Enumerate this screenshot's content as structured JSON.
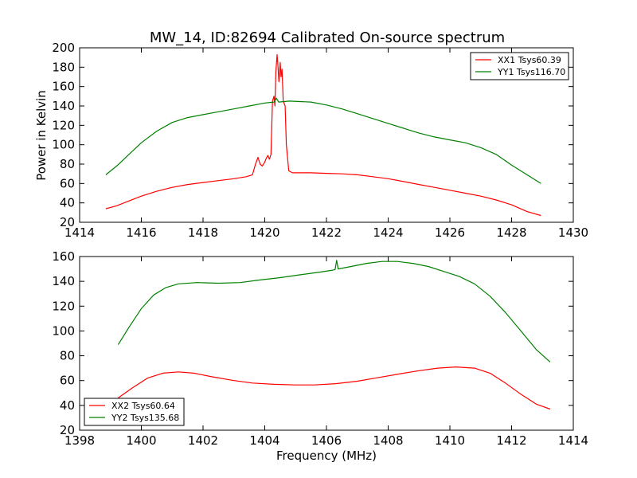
{
  "chart_data": [
    {
      "type": "line",
      "title": "MW_14, ID:82694 Calibrated On-source spectrum",
      "xlabel": "",
      "ylabel": "Power in Kelvin",
      "xlim": [
        1414,
        1430
      ],
      "ylim": [
        20,
        200
      ],
      "xticks": [
        1414,
        1416,
        1418,
        1420,
        1422,
        1424,
        1426,
        1428,
        1430
      ],
      "yticks": [
        20,
        40,
        60,
        80,
        100,
        120,
        140,
        160,
        180,
        200
      ],
      "legend_position": "top-right",
      "grid": false,
      "series": [
        {
          "name": "XX1 Tsys60.39",
          "color": "#ff0000",
          "points": [
            [
              1414.85,
              34
            ],
            [
              1415.2,
              37
            ],
            [
              1415.6,
              42
            ],
            [
              1416,
              47
            ],
            [
              1416.5,
              52
            ],
            [
              1417,
              56
            ],
            [
              1417.5,
              59
            ],
            [
              1418,
              61
            ],
            [
              1418.5,
              63
            ],
            [
              1419,
              65
            ],
            [
              1419.4,
              67
            ],
            [
              1419.6,
              69
            ],
            [
              1419.7,
              80
            ],
            [
              1419.78,
              87
            ],
            [
              1419.85,
              80
            ],
            [
              1419.92,
              78
            ],
            [
              1420.0,
              82
            ],
            [
              1420.05,
              86
            ],
            [
              1420.1,
              89
            ],
            [
              1420.15,
              85
            ],
            [
              1420.2,
              90
            ],
            [
              1420.25,
              145
            ],
            [
              1420.3,
              150
            ],
            [
              1420.33,
              140
            ],
            [
              1420.36,
              175
            ],
            [
              1420.4,
              193
            ],
            [
              1420.43,
              180
            ],
            [
              1420.46,
              165
            ],
            [
              1420.5,
              185
            ],
            [
              1420.53,
              170
            ],
            [
              1420.56,
              178
            ],
            [
              1420.6,
              145
            ],
            [
              1420.66,
              140
            ],
            [
              1420.7,
              100
            ],
            [
              1420.78,
              73
            ],
            [
              1420.9,
              71
            ],
            [
              1421.5,
              71
            ],
            [
              1422,
              70.5
            ],
            [
              1422.5,
              70
            ],
            [
              1423,
              69
            ],
            [
              1423.5,
              67
            ],
            [
              1424,
              65
            ],
            [
              1424.5,
              62
            ],
            [
              1425,
              59
            ],
            [
              1425.5,
              56
            ],
            [
              1426,
              53
            ],
            [
              1426.5,
              50
            ],
            [
              1427,
              47
            ],
            [
              1427.5,
              43
            ],
            [
              1428,
              38
            ],
            [
              1428.5,
              31
            ],
            [
              1428.95,
              27
            ]
          ]
        },
        {
          "name": "YY1 Tsys116.70",
          "color": "#008000",
          "points": [
            [
              1414.85,
              69
            ],
            [
              1415.2,
              78
            ],
            [
              1415.6,
              90
            ],
            [
              1416,
              102
            ],
            [
              1416.5,
              114
            ],
            [
              1417,
              123
            ],
            [
              1417.5,
              128
            ],
            [
              1418,
              131
            ],
            [
              1418.5,
              134
            ],
            [
              1419,
              137
            ],
            [
              1419.5,
              140
            ],
            [
              1420,
              143
            ],
            [
              1420.3,
              144
            ],
            [
              1420.38,
              148
            ],
            [
              1420.45,
              144
            ],
            [
              1420.8,
              145
            ],
            [
              1421.5,
              144
            ],
            [
              1422,
              141
            ],
            [
              1422.5,
              137
            ],
            [
              1423,
              132
            ],
            [
              1423.5,
              127
            ],
            [
              1424,
              122
            ],
            [
              1424.5,
              117
            ],
            [
              1425,
              112
            ],
            [
              1425.5,
              108
            ],
            [
              1426,
              105
            ],
            [
              1426.5,
              102
            ],
            [
              1427,
              97
            ],
            [
              1427.5,
              90
            ],
            [
              1428,
              79
            ],
            [
              1428.5,
              69
            ],
            [
              1428.95,
              60
            ]
          ]
        }
      ]
    },
    {
      "type": "line",
      "title": "",
      "xlabel": "Frequency (MHz)",
      "ylabel": "",
      "xlim": [
        1398,
        1414
      ],
      "ylim": [
        20,
        160
      ],
      "xticks": [
        1398,
        1400,
        1402,
        1404,
        1406,
        1408,
        1410,
        1412,
        1414
      ],
      "yticks": [
        20,
        40,
        60,
        80,
        100,
        120,
        140,
        160
      ],
      "legend_position": "bottom-left",
      "grid": false,
      "series": [
        {
          "name": "XX2 Tsys60.64",
          "color": "#ff0000",
          "points": [
            [
              1399.25,
              46
            ],
            [
              1399.7,
              54
            ],
            [
              1400.2,
              62
            ],
            [
              1400.7,
              66
            ],
            [
              1401.2,
              67
            ],
            [
              1401.7,
              66
            ],
            [
              1402.3,
              63
            ],
            [
              1403,
              60
            ],
            [
              1403.6,
              58
            ],
            [
              1404.3,
              57
            ],
            [
              1405,
              56.5
            ],
            [
              1405.6,
              56.5
            ],
            [
              1406.3,
              57.5
            ],
            [
              1407,
              59.5
            ],
            [
              1407.7,
              62.5
            ],
            [
              1408.4,
              65.5
            ],
            [
              1409,
              68
            ],
            [
              1409.6,
              70
            ],
            [
              1410.2,
              71
            ],
            [
              1410.8,
              70
            ],
            [
              1411.3,
              66
            ],
            [
              1411.8,
              58
            ],
            [
              1412.3,
              49
            ],
            [
              1412.8,
              41
            ],
            [
              1413.25,
              37
            ]
          ]
        },
        {
          "name": "YY2 Tsys135.68",
          "color": "#008000",
          "points": [
            [
              1399.25,
              89
            ],
            [
              1399.6,
              103
            ],
            [
              1400,
              118
            ],
            [
              1400.4,
              129
            ],
            [
              1400.8,
              135
            ],
            [
              1401.2,
              138
            ],
            [
              1401.8,
              139
            ],
            [
              1402.5,
              138.5
            ],
            [
              1403.2,
              139
            ],
            [
              1403.8,
              141
            ],
            [
              1404.5,
              143
            ],
            [
              1405.2,
              145.5
            ],
            [
              1405.8,
              147.5
            ],
            [
              1406.2,
              149
            ],
            [
              1406.28,
              149.5
            ],
            [
              1406.33,
              157
            ],
            [
              1406.38,
              150
            ],
            [
              1406.8,
              152
            ],
            [
              1407.3,
              154.5
            ],
            [
              1407.8,
              156
            ],
            [
              1408.3,
              156
            ],
            [
              1408.8,
              154.5
            ],
            [
              1409.3,
              152
            ],
            [
              1409.8,
              148
            ],
            [
              1410.3,
              144
            ],
            [
              1410.8,
              138
            ],
            [
              1411.3,
              128
            ],
            [
              1411.8,
              115
            ],
            [
              1412.3,
              100
            ],
            [
              1412.8,
              85
            ],
            [
              1413.25,
              75
            ]
          ]
        }
      ]
    }
  ]
}
